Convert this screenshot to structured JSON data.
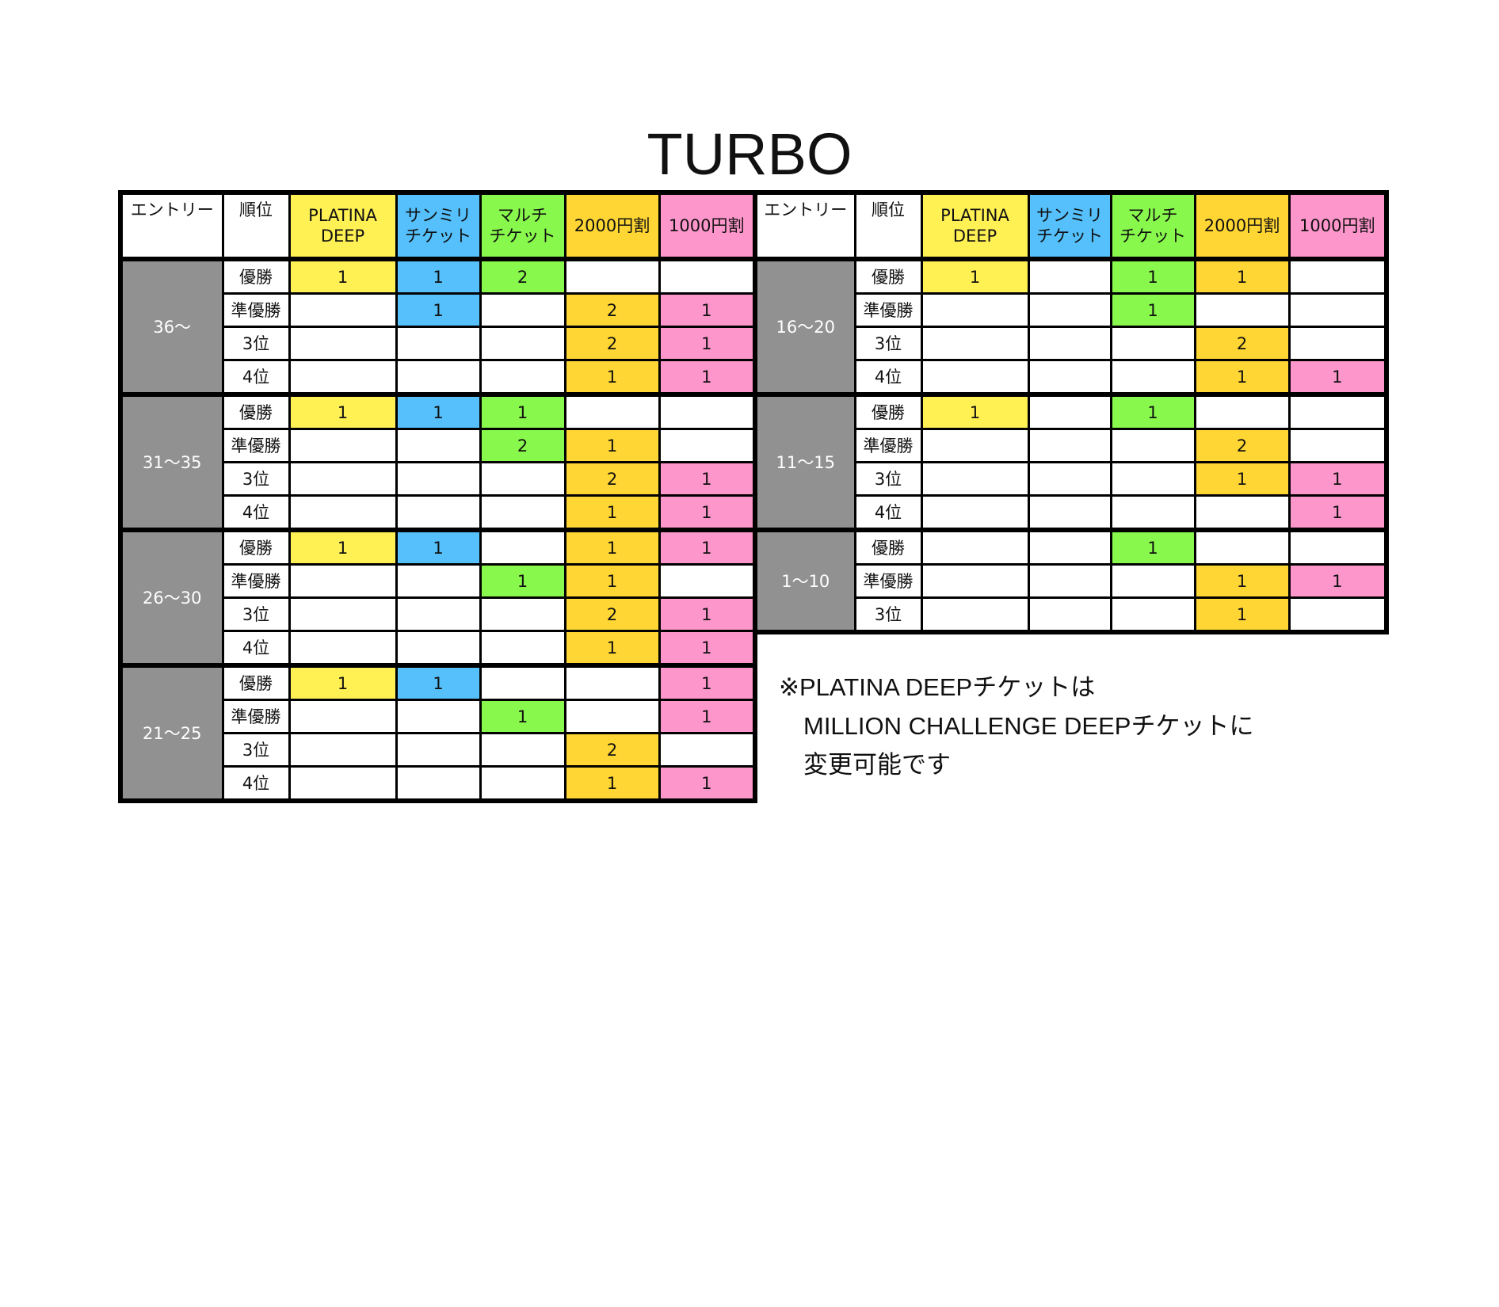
{
  "title": "TURBO",
  "headers": {
    "entry": "エントリー",
    "rank": "順位",
    "cols": [
      {
        "key": "platina",
        "line1": "PLATINA",
        "line2": "DEEP",
        "color": "#fff054"
      },
      {
        "key": "sanmiri",
        "line1": "サンミリ",
        "line2": "チケット",
        "color": "#55c0fb"
      },
      {
        "key": "multi",
        "line1": "マルチ",
        "line2": "チケット",
        "color": "#88f84c"
      },
      {
        "key": "off2000",
        "line1": "2000円割",
        "line2": "",
        "color": "#ffd633"
      },
      {
        "key": "off1000",
        "line1": "1000円割",
        "line2": "",
        "color": "#fd96cb"
      }
    ]
  },
  "entry_bg_color": "#919191",
  "left_table": [
    {
      "entry": "36〜",
      "rows": [
        {
          "rank": "優勝",
          "values": [
            "1",
            "1",
            "2",
            "",
            ""
          ]
        },
        {
          "rank": "準優勝",
          "values": [
            "",
            "1",
            "",
            "2",
            "1"
          ]
        },
        {
          "rank": "3位",
          "values": [
            "",
            "",
            "",
            "2",
            "1"
          ]
        },
        {
          "rank": "4位",
          "values": [
            "",
            "",
            "",
            "1",
            "1"
          ]
        }
      ]
    },
    {
      "entry": "31〜35",
      "rows": [
        {
          "rank": "優勝",
          "values": [
            "1",
            "1",
            "1",
            "",
            ""
          ]
        },
        {
          "rank": "準優勝",
          "values": [
            "",
            "",
            "2",
            "1",
            ""
          ]
        },
        {
          "rank": "3位",
          "values": [
            "",
            "",
            "",
            "2",
            "1"
          ]
        },
        {
          "rank": "4位",
          "values": [
            "",
            "",
            "",
            "1",
            "1"
          ]
        }
      ]
    },
    {
      "entry": "26〜30",
      "rows": [
        {
          "rank": "優勝",
          "values": [
            "1",
            "1",
            "",
            "1",
            "1"
          ]
        },
        {
          "rank": "準優勝",
          "values": [
            "",
            "",
            "1",
            "1",
            ""
          ]
        },
        {
          "rank": "3位",
          "values": [
            "",
            "",
            "",
            "2",
            "1"
          ]
        },
        {
          "rank": "4位",
          "values": [
            "",
            "",
            "",
            "1",
            "1"
          ]
        }
      ]
    },
    {
      "entry": "21〜25",
      "rows": [
        {
          "rank": "優勝",
          "values": [
            "1",
            "1",
            "",
            "",
            "1"
          ]
        },
        {
          "rank": "準優勝",
          "values": [
            "",
            "",
            "1",
            "",
            "1"
          ]
        },
        {
          "rank": "3位",
          "values": [
            "",
            "",
            "",
            "2",
            ""
          ]
        },
        {
          "rank": "4位",
          "values": [
            "",
            "",
            "",
            "1",
            "1"
          ]
        }
      ]
    }
  ],
  "right_table": [
    {
      "entry": "16〜20",
      "rows": [
        {
          "rank": "優勝",
          "values": [
            "1",
            "",
            "1",
            "1",
            ""
          ]
        },
        {
          "rank": "準優勝",
          "values": [
            "",
            "",
            "1",
            "",
            ""
          ]
        },
        {
          "rank": "3位",
          "values": [
            "",
            "",
            "",
            "2",
            ""
          ]
        },
        {
          "rank": "4位",
          "values": [
            "",
            "",
            "",
            "1",
            "1"
          ]
        }
      ]
    },
    {
      "entry": "11〜15",
      "rows": [
        {
          "rank": "優勝",
          "values": [
            "1",
            "",
            "1",
            "",
            ""
          ]
        },
        {
          "rank": "準優勝",
          "values": [
            "",
            "",
            "",
            "2",
            ""
          ]
        },
        {
          "rank": "3位",
          "values": [
            "",
            "",
            "",
            "1",
            "1"
          ]
        },
        {
          "rank": "4位",
          "values": [
            "",
            "",
            "",
            "",
            "1"
          ]
        }
      ]
    },
    {
      "entry": "1〜10",
      "rows": [
        {
          "rank": "優勝",
          "values": [
            "",
            "",
            "1",
            "",
            ""
          ]
        },
        {
          "rank": "準優勝",
          "values": [
            "",
            "",
            "",
            "1",
            "1"
          ]
        },
        {
          "rank": "3位",
          "values": [
            "",
            "",
            "",
            "1",
            ""
          ]
        }
      ]
    }
  ],
  "note": {
    "line1": "※PLATINA DEEPチケットは",
    "line2": "MILLION CHALLENGE DEEPチケットに",
    "line3": "変更可能です"
  }
}
